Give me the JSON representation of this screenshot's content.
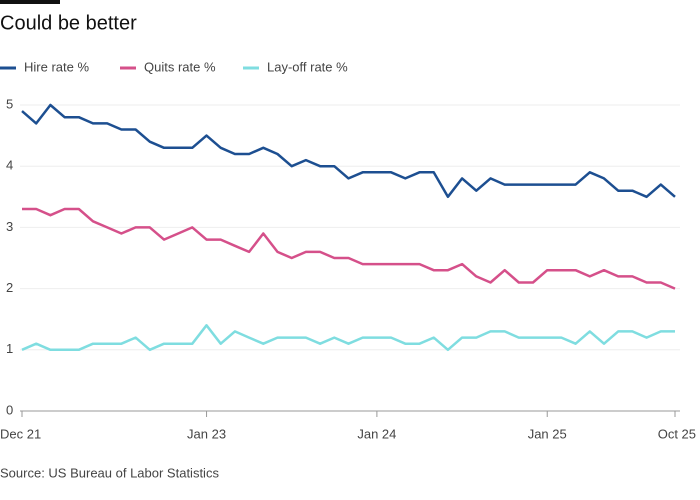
{
  "chart_data": {
    "type": "line",
    "title": "Could be better",
    "source": "Source: US Bureau of Labor Statistics",
    "categories": [
      "Dec 21",
      null,
      null,
      null,
      null,
      null,
      null,
      null,
      null,
      null,
      null,
      null,
      null,
      "Jan 23",
      null,
      null,
      null,
      null,
      null,
      null,
      null,
      null,
      null,
      null,
      null,
      "Jan 24",
      null,
      null,
      null,
      null,
      null,
      null,
      null,
      null,
      null,
      null,
      null,
      "Jan 25",
      null,
      null,
      null,
      null,
      null,
      null,
      null,
      null,
      "Oct 25"
    ],
    "series": [
      {
        "name": "Hire rate %",
        "color": "#1d4f91",
        "values": [
          4.9,
          4.7,
          5.0,
          4.8,
          4.8,
          4.7,
          4.7,
          4.6,
          4.6,
          4.4,
          4.3,
          4.3,
          4.3,
          4.5,
          4.3,
          4.2,
          4.2,
          4.3,
          4.2,
          4.0,
          4.1,
          4.0,
          4.0,
          3.8,
          3.9,
          3.9,
          3.9,
          3.8,
          3.9,
          3.9,
          3.5,
          3.8,
          3.6,
          3.8,
          3.7,
          3.7,
          3.7,
          3.7,
          3.7,
          3.7,
          3.9,
          3.8,
          3.6,
          3.6,
          3.5,
          3.7,
          3.5
        ]
      },
      {
        "name": "Quits rate %",
        "color": "#d5508a",
        "values": [
          3.3,
          3.3,
          3.2,
          3.3,
          3.3,
          3.1,
          3.0,
          2.9,
          3.0,
          3.0,
          2.8,
          2.9,
          3.0,
          2.8,
          2.8,
          2.7,
          2.6,
          2.9,
          2.6,
          2.5,
          2.6,
          2.6,
          2.5,
          2.5,
          2.4,
          2.4,
          2.4,
          2.4,
          2.4,
          2.3,
          2.3,
          2.4,
          2.2,
          2.1,
          2.3,
          2.1,
          2.1,
          2.3,
          2.3,
          2.3,
          2.2,
          2.3,
          2.2,
          2.2,
          2.1,
          2.1,
          2.0
        ]
      },
      {
        "name": "Lay-off rate %",
        "color": "#7fdde0",
        "values": [
          1.0,
          1.1,
          1.0,
          1.0,
          1.0,
          1.1,
          1.1,
          1.1,
          1.2,
          1.0,
          1.1,
          1.1,
          1.1,
          1.4,
          1.1,
          1.3,
          1.2,
          1.1,
          1.2,
          1.2,
          1.2,
          1.1,
          1.2,
          1.1,
          1.2,
          1.2,
          1.2,
          1.1,
          1.1,
          1.2,
          1.0,
          1.2,
          1.2,
          1.3,
          1.3,
          1.2,
          1.2,
          1.2,
          1.2,
          1.1,
          1.3,
          1.1,
          1.3,
          1.3,
          1.2,
          1.3,
          1.3
        ]
      }
    ],
    "ylim": [
      0,
      5
    ],
    "yticks": [
      0,
      1,
      2,
      3,
      4,
      5
    ],
    "grid": true
  }
}
